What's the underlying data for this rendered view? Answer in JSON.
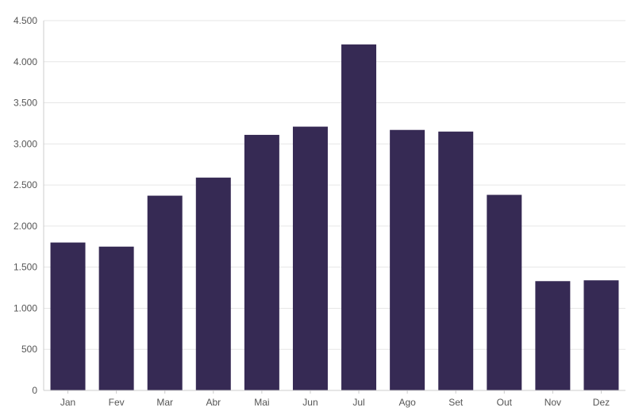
{
  "chart_data": {
    "type": "bar",
    "categories": [
      "Jan",
      "Fev",
      "Mar",
      "Abr",
      "Mai",
      "Jun",
      "Jul",
      "Ago",
      "Set",
      "Out",
      "Nov",
      "Dez"
    ],
    "values": [
      1800,
      1750,
      2370,
      2590,
      3110,
      3210,
      4210,
      3170,
      3150,
      2380,
      1330,
      1340
    ],
    "ylim": [
      0,
      4500
    ],
    "yticks": [
      0,
      500,
      1000,
      1500,
      2000,
      2500,
      3000,
      3500,
      4000,
      4500
    ],
    "ytick_labels": [
      "0",
      "500",
      "1.000",
      "1.500",
      "2.000",
      "2.500",
      "3.000",
      "3.500",
      "4.000",
      "4.500"
    ],
    "grid": true,
    "title": "",
    "xlabel": "",
    "ylabel": ""
  },
  "colors": {
    "bar": "#362a54",
    "grid": "#e6e6e6",
    "axis": "#cccccc",
    "tick_text": "#555555"
  }
}
